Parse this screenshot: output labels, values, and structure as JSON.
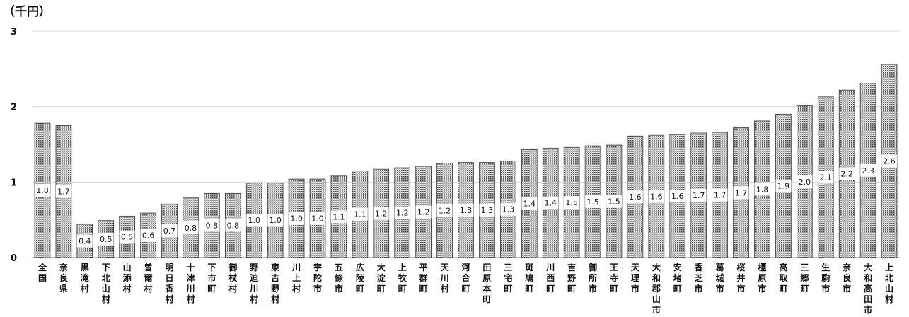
{
  "chart_data": {
    "type": "bar",
    "unit_label": "（千円）",
    "categories": [
      "全国",
      "奈良県",
      "黒滝村",
      "下北山村",
      "山添村",
      "曽爾村",
      "明日香村",
      "十津川村",
      "下市町",
      "御杖村",
      "野迫川村",
      "東吉野村",
      "川上村",
      "宇陀市",
      "五條市",
      "広陵町",
      "大淀町",
      "上牧町",
      "平群町",
      "天川村",
      "河合町",
      "田原本町",
      "三宅町",
      "斑鳩町",
      "川西町",
      "吉野町",
      "御所市",
      "王寺町",
      "天理市",
      "大和郡山市",
      "安堵町",
      "香芝市",
      "葛城市",
      "桜井市",
      "橿原市",
      "高取町",
      "三郷町",
      "生駒市",
      "奈良市",
      "大和高田市",
      "上北山村"
    ],
    "values": [
      1.78,
      1.75,
      0.44,
      0.49,
      0.55,
      0.59,
      0.71,
      0.79,
      0.85,
      0.85,
      0.99,
      0.99,
      1.04,
      1.04,
      1.08,
      1.15,
      1.17,
      1.19,
      1.21,
      1.25,
      1.26,
      1.26,
      1.28,
      1.43,
      1.45,
      1.46,
      1.48,
      1.49,
      1.61,
      1.62,
      1.63,
      1.65,
      1.66,
      1.72,
      1.81,
      1.9,
      2.01,
      2.13,
      2.22,
      2.31,
      2.56
    ],
    "labels": [
      "1.8",
      "1.7",
      "0.4",
      "0.5",
      "0.5",
      "0.6",
      "0.7",
      "0.8",
      "0.8",
      "0.8",
      "1.0",
      "1.0",
      "1.0",
      "1.0",
      "1.1",
      "1.1",
      "1.2",
      "1.2",
      "1.2",
      "1.2",
      "1.3",
      "1.3",
      "1.3",
      "1.4",
      "1.4",
      "1.5",
      "1.5",
      "1.5",
      "1.6",
      "1.6",
      "1.6",
      "1.7",
      "1.7",
      "1.7",
      "1.8",
      "1.9",
      "2.0",
      "2.1",
      "2.2",
      "2.3",
      "2.6"
    ],
    "yticks": [
      "0",
      "1",
      "2",
      "3"
    ],
    "ylim": [
      0,
      3
    ],
    "grid": true
  }
}
